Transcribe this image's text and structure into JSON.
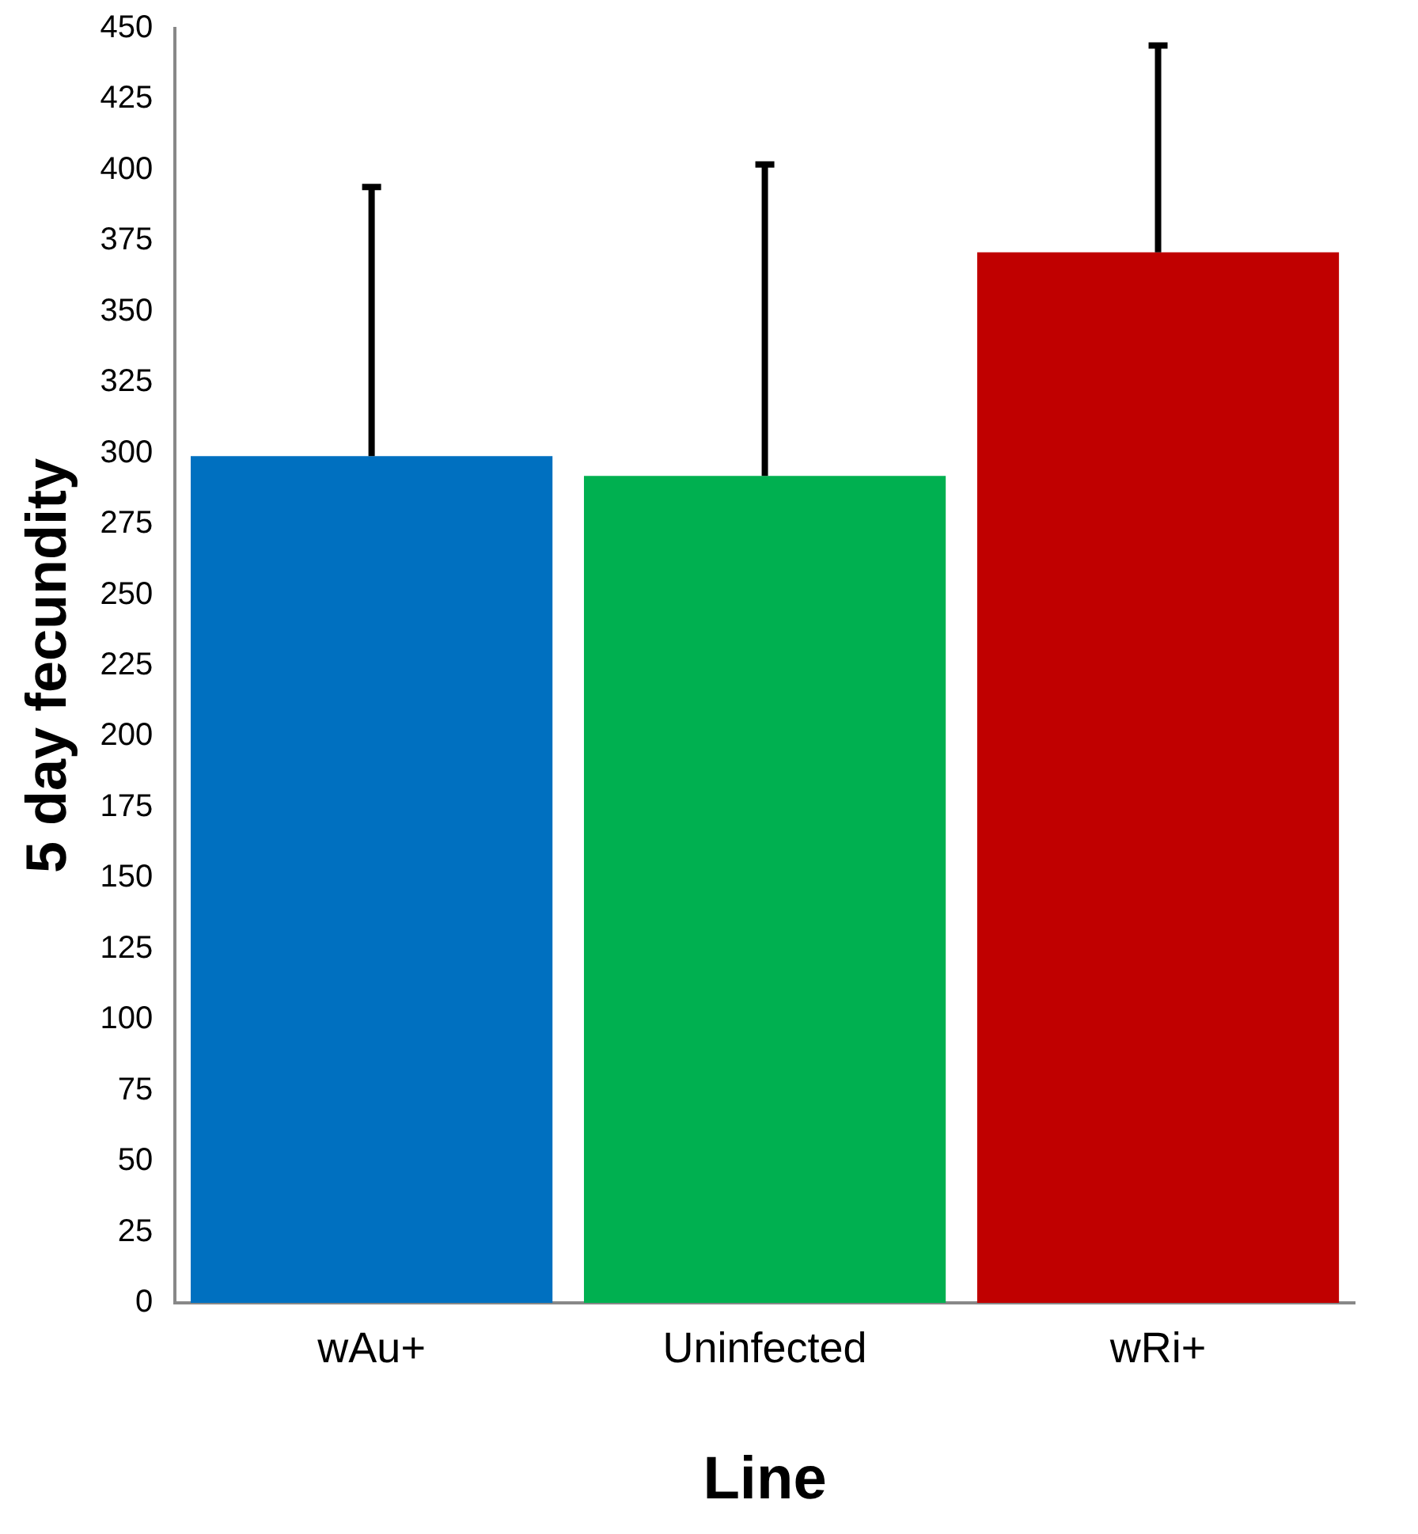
{
  "chart_data": {
    "type": "bar",
    "xlabel": "Line",
    "ylabel": "5 day fecundity",
    "categories": [
      "wAu+",
      "Uninfected",
      "wRi+"
    ],
    "values": [
      299,
      292,
      371
    ],
    "colors": [
      "#0070c0",
      "#00b050",
      "#c00000"
    ],
    "errors": [
      [
        299,
        394
      ],
      [
        292,
        402
      ],
      [
        371,
        444
      ]
    ],
    "ylim": [
      0,
      450
    ],
    "yticks": [
      0,
      25,
      50,
      75,
      100,
      125,
      150,
      175,
      200,
      225,
      250,
      275,
      300,
      325,
      350,
      375,
      400,
      425,
      450
    ],
    "grid": false,
    "legend": false
  }
}
